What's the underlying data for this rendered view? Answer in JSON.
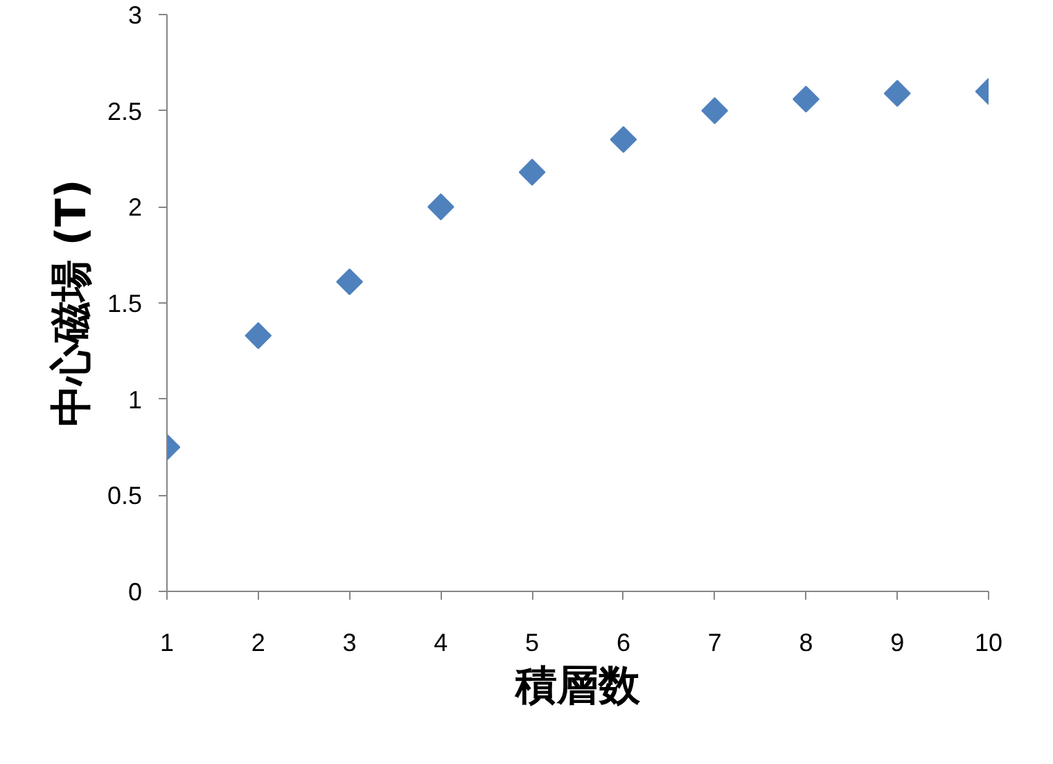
{
  "chart_data": {
    "type": "scatter",
    "xlabel": "積層数",
    "ylabel": "中心磁場 (T)",
    "x": [
      1,
      2,
      3,
      4,
      5,
      6,
      7,
      8,
      9,
      10
    ],
    "series": [
      {
        "color": "#4f81bd",
        "values": [
          0.75,
          1.33,
          1.61,
          2.0,
          2.18,
          2.35,
          2.5,
          2.56,
          2.59,
          2.6
        ]
      }
    ],
    "xlim": [
      1,
      10
    ],
    "ylim": [
      0,
      3
    ],
    "xticks": [
      1,
      2,
      3,
      4,
      5,
      6,
      7,
      8,
      9,
      10
    ],
    "yticks": [
      0,
      0.5,
      1,
      1.5,
      2,
      2.5,
      3
    ],
    "marker": "diamond",
    "grid": false
  }
}
